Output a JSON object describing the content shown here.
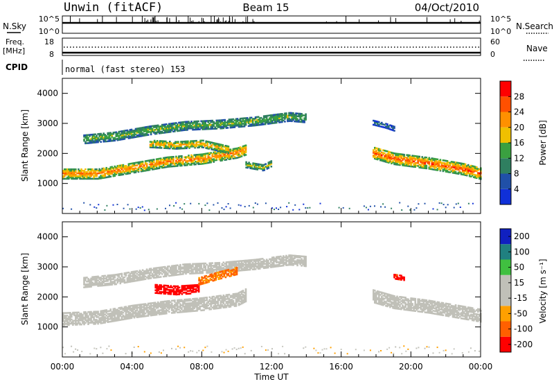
{
  "header": {
    "station": "Unwin (fitACF)",
    "beam": "Beam 15",
    "date": "04/Oct/2010"
  },
  "noise_panel": {
    "left_label": "N.Sky",
    "right_label": "N.Search",
    "ticks_left": [
      "10^5",
      "10^0"
    ],
    "ticks_right": [
      "10^5",
      "10^0"
    ]
  },
  "freq_panel": {
    "left_label_1": "Freq.",
    "left_label_2": "[MHz]",
    "right_label": "Nave",
    "ticks_left": [
      "18",
      "8"
    ],
    "ticks_right": [
      "60",
      "0"
    ]
  },
  "cpid": {
    "label": "CPID",
    "value": "normal (fast stereo) 153"
  },
  "colors": {
    "power_scale": [
      "#1030d8",
      "#2050a8",
      "#2f7f60",
      "#3aa040",
      "#f0c000",
      "#ff9000",
      "#ff5000",
      "#ff0000"
    ],
    "velocity_scale": [
      "#ff0000",
      "#ff6000",
      "#ffa000",
      "#e0d080",
      "#c8c8c0",
      "#40c040",
      "#208080",
      "#1020c0"
    ],
    "ground_scatter": "#c0c0b8"
  },
  "chart_data": [
    {
      "type": "heatmap",
      "title": "",
      "xlabel": "",
      "ylabel": "Slant Range [km]",
      "xlim": [
        "00:00",
        "24:00"
      ],
      "ylim": [
        0,
        4500
      ],
      "x_ticks": [
        "00:00",
        "04:00",
        "08:00",
        "12:00",
        "16:00",
        "20:00",
        "00:00"
      ],
      "y_ticks": [
        "1000",
        "2000",
        "3000",
        "4000"
      ],
      "colorbar": {
        "label": "Power [dB]",
        "ticks": [
          "4",
          "8",
          "12",
          "16",
          "20",
          "24",
          "28"
        ]
      },
      "scatter_bands": [
        {
          "name": "main",
          "points": [
            [
              0.0,
              1300
            ],
            [
              2.0,
              1300
            ],
            [
              4.0,
              1500
            ],
            [
              6.0,
              1700
            ],
            [
              8.0,
              1800
            ],
            [
              10.0,
              2000
            ],
            [
              10.5,
              2100
            ]
          ],
          "width": 350,
          "value": 22
        },
        {
          "name": "upper",
          "points": [
            [
              1.2,
              2450
            ],
            [
              3.0,
              2550
            ],
            [
              5.0,
              2750
            ],
            [
              7.0,
              2900
            ],
            [
              9.0,
              2950
            ],
            [
              11.0,
              3050
            ],
            [
              13.0,
              3200
            ],
            [
              14.0,
              3150
            ]
          ],
          "width": 300,
          "value": 14
        },
        {
          "name": "middle",
          "points": [
            [
              5.0,
              2300
            ],
            [
              6.5,
              2250
            ],
            [
              8.0,
              2300
            ],
            [
              9.5,
              2100
            ]
          ],
          "width": 250,
          "value": 20
        },
        {
          "name": "patch",
          "points": [
            [
              10.5,
              1600
            ],
            [
              11.5,
              1500
            ],
            [
              12.0,
              1650
            ]
          ],
          "width": 200,
          "value": 16
        },
        {
          "name": "evening",
          "points": [
            [
              17.8,
              2000
            ],
            [
              19.0,
              1800
            ],
            [
              21.0,
              1650
            ],
            [
              23.0,
              1450
            ],
            [
              24.0,
              1300
            ]
          ],
          "width": 380,
          "value": 24
        },
        {
          "name": "evening-upper",
          "points": [
            [
              17.8,
              3000
            ],
            [
              18.5,
              2900
            ],
            [
              19.0,
              2800
            ]
          ],
          "width": 150,
          "value": 8
        }
      ]
    },
    {
      "type": "heatmap",
      "title": "",
      "xlabel": "Time UT",
      "ylabel": "Slant Range [km]",
      "xlim": [
        "00:00",
        "24:00"
      ],
      "ylim": [
        0,
        4500
      ],
      "x_ticks": [
        "00:00",
        "04:00",
        "08:00",
        "12:00",
        "16:00",
        "20:00",
        "00:00"
      ],
      "y_ticks": [
        "1000",
        "2000",
        "3000",
        "4000"
      ],
      "colorbar": {
        "label": "Velocity [m s⁻¹]",
        "ticks": [
          "200",
          "100",
          "50",
          "15",
          "-15",
          "-50",
          "-100",
          "-200"
        ]
      },
      "scatter_bands": [
        {
          "name": "ground-main",
          "points": [
            [
              0.0,
              1250
            ],
            [
              2.0,
              1300
            ],
            [
              4.0,
              1500
            ],
            [
              6.0,
              1650
            ],
            [
              8.0,
              1750
            ],
            [
              10.0,
              1900
            ],
            [
              10.5,
              2050
            ]
          ],
          "width": 450,
          "value": 0
        },
        {
          "name": "ground-upper",
          "points": [
            [
              1.2,
              2450
            ],
            [
              3.0,
              2550
            ],
            [
              5.0,
              2750
            ],
            [
              7.0,
              2900
            ],
            [
              9.0,
              2950
            ],
            [
              11.0,
              3050
            ],
            [
              13.0,
              3200
            ],
            [
              14.0,
              3150
            ]
          ],
          "width": 320,
          "value": 0
        },
        {
          "name": "red-patch",
          "points": [
            [
              5.3,
              2250
            ],
            [
              6.5,
              2200
            ],
            [
              7.8,
              2250
            ]
          ],
          "width": 300,
          "value": -180
        },
        {
          "name": "orange-patch",
          "points": [
            [
              7.8,
              2500
            ],
            [
              9.0,
              2700
            ],
            [
              10.0,
              2850
            ]
          ],
          "width": 250,
          "value": -60
        },
        {
          "name": "evening-ground",
          "points": [
            [
              17.8,
              2000
            ],
            [
              19.0,
              1800
            ],
            [
              21.0,
              1650
            ],
            [
              23.0,
              1450
            ],
            [
              24.0,
              1350
            ]
          ],
          "width": 420,
          "value": 0
        },
        {
          "name": "evening-red",
          "points": [
            [
              19.0,
              2650
            ],
            [
              19.6,
              2600
            ]
          ],
          "width": 150,
          "value": -120
        }
      ]
    }
  ]
}
